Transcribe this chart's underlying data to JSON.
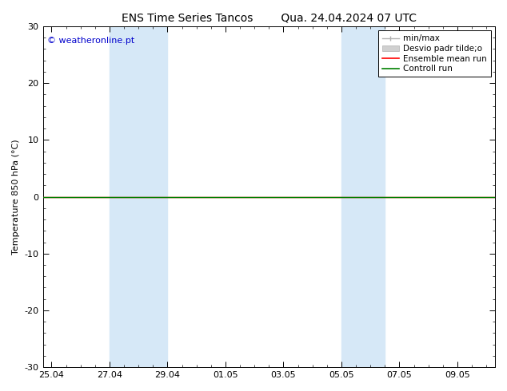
{
  "title_left": "ENS Time Series Tancos",
  "title_right": "Qua. 24.04.2024 07 UTC",
  "ylabel": "Temperature 850 hPa (°C)",
  "copyright": "© weatheronline.pt",
  "ylim": [
    -30,
    30
  ],
  "yticks": [
    -30,
    -20,
    -10,
    0,
    10,
    20,
    30
  ],
  "xtick_labels": [
    "25.04",
    "27.04",
    "29.04",
    "01.05",
    "03.05",
    "05.05",
    "07.05",
    "09.05"
  ],
  "xtick_positions": [
    0,
    2,
    4,
    6,
    8,
    10,
    12,
    14
  ],
  "xlim": [
    -0.3,
    15.3
  ],
  "shaded_bands": [
    {
      "x_start": 2,
      "x_end": 4
    },
    {
      "x_start": 10,
      "x_end": 11.5
    }
  ],
  "band_color": "#d6e8f7",
  "ensemble_mean_color": "#ff0000",
  "control_run_color": "#008000",
  "minmax_color": "#b0b0b0",
  "std_color": "#d0d0d0",
  "background_color": "#ffffff",
  "copyright_color": "#0000cc",
  "title_fontsize": 10,
  "label_fontsize": 8,
  "tick_fontsize": 8,
  "legend_fontsize": 7.5,
  "legend_label_1": "min/max",
  "legend_label_2": "Desvio padr tilde;o",
  "legend_label_3": "Ensemble mean run",
  "legend_label_4": "Controll run"
}
